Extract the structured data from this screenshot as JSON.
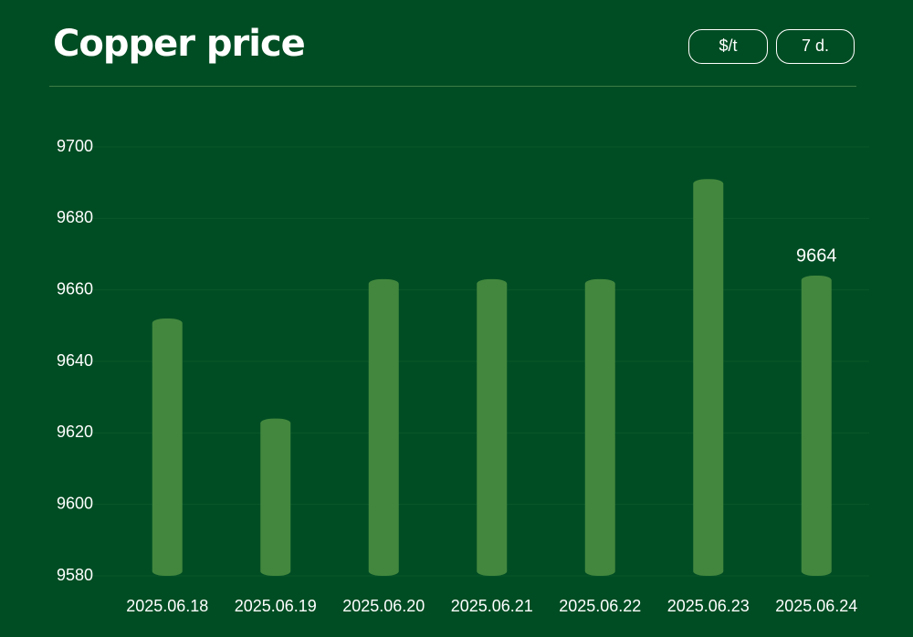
{
  "chart_data": {
    "type": "bar",
    "title": "Copper price",
    "categories": [
      "2025.06.18",
      "2025.06.19",
      "2025.06.20",
      "2025.06.21",
      "2025.06.22",
      "2025.06.23",
      "2025.06.24"
    ],
    "values": [
      9652,
      9624,
      9663,
      9663,
      9663,
      9691,
      9664
    ],
    "value_labels": [
      null,
      null,
      null,
      null,
      null,
      null,
      "9664"
    ],
    "color": "#43873e",
    "ylim": [
      9580,
      9700
    ],
    "yticks": [
      9580,
      9600,
      9620,
      9640,
      9660,
      9680,
      9700
    ],
    "grid": true
  },
  "controls": [
    "$/t",
    "7 d."
  ]
}
